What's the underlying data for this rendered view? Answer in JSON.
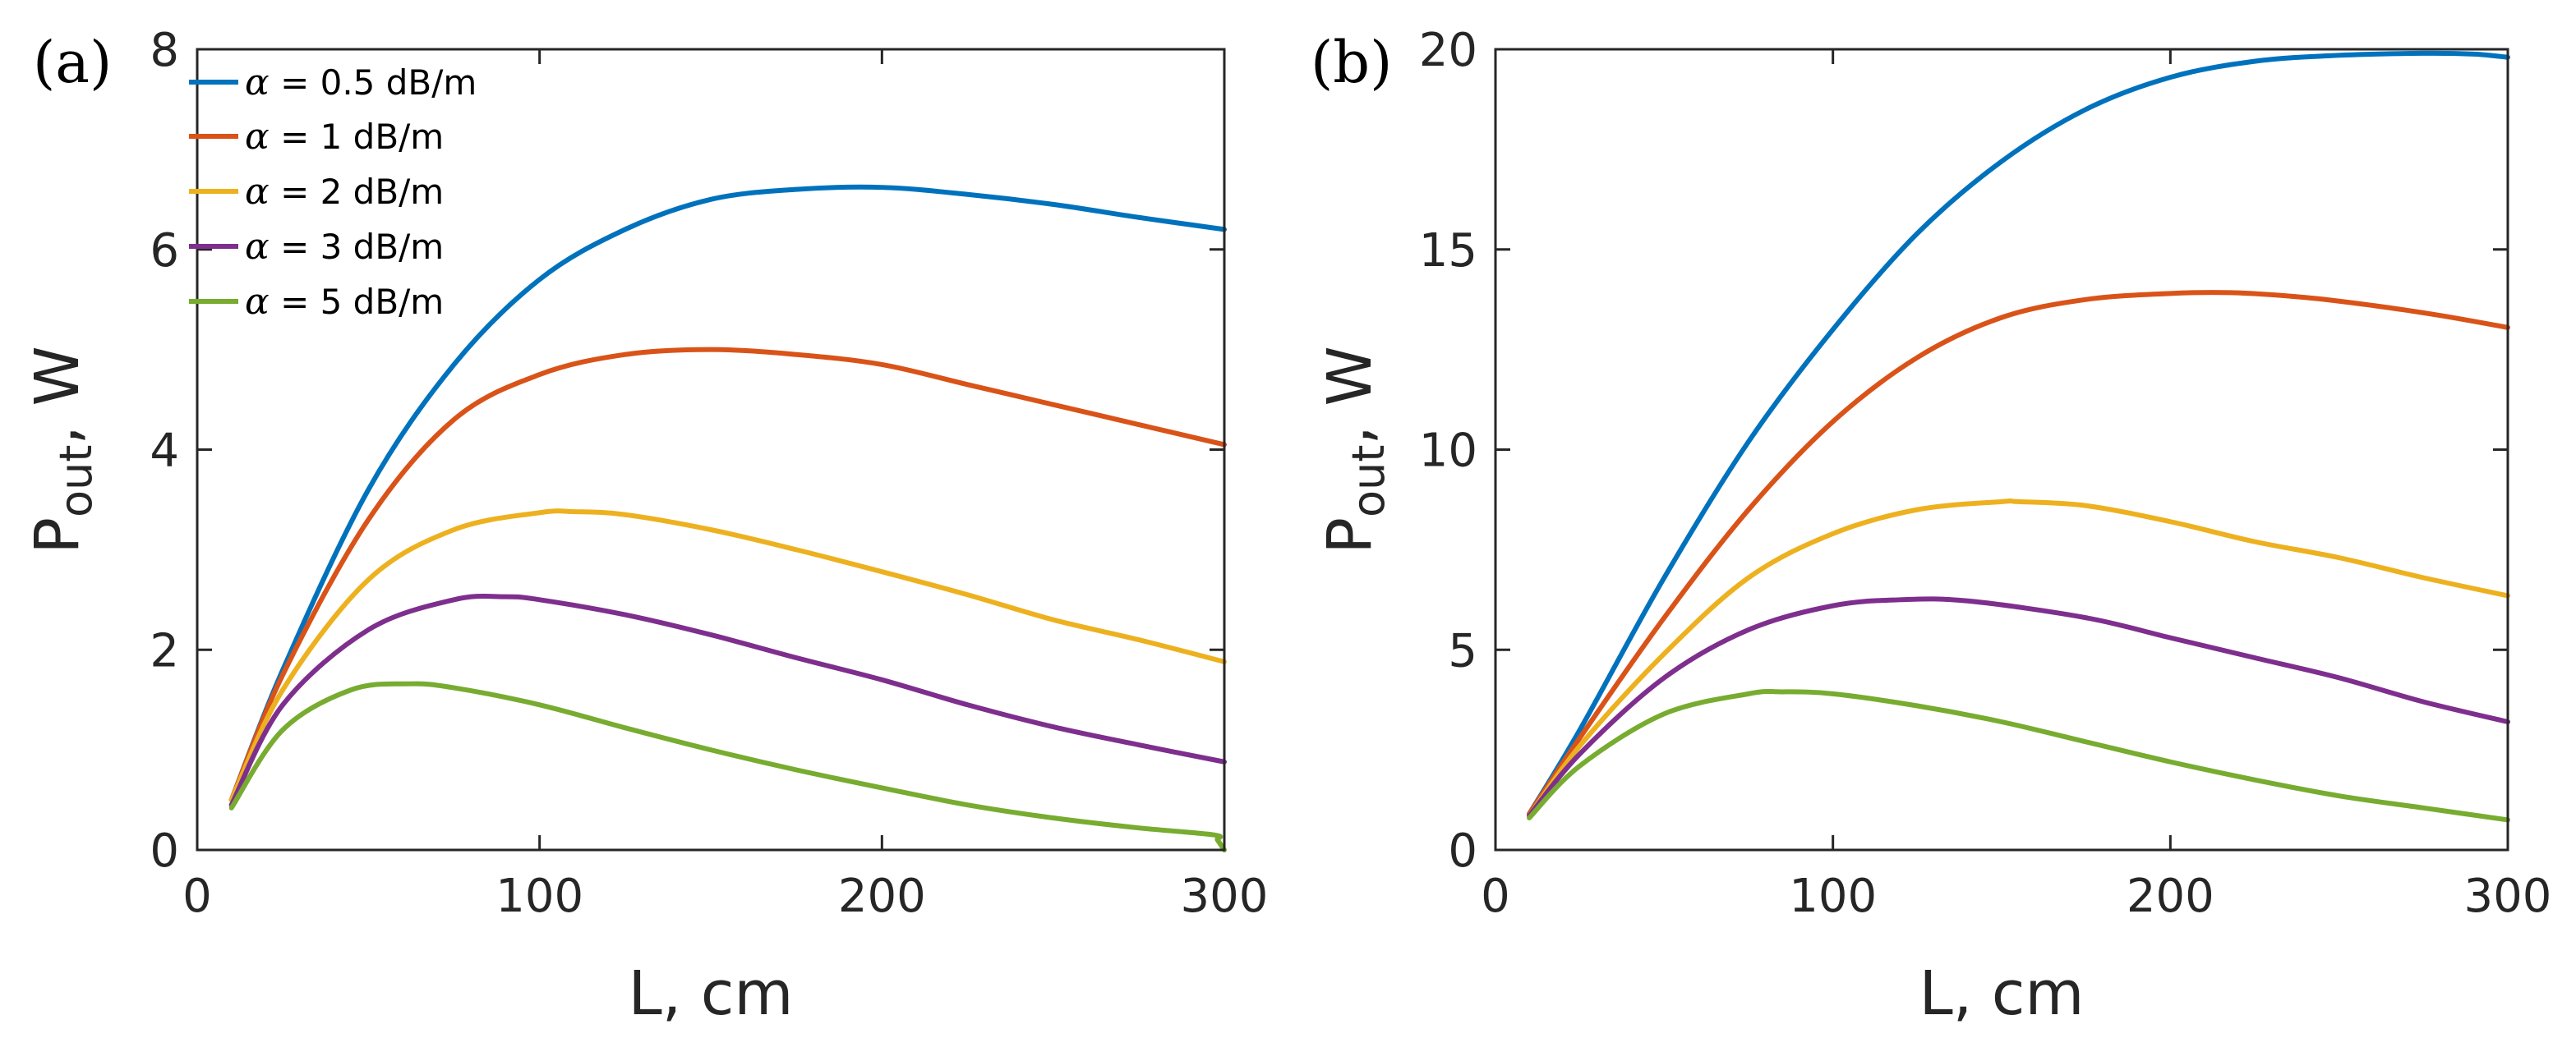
{
  "colors": {
    "blue": "#0072BD",
    "orange": "#D95319",
    "yellow": "#EDB120",
    "purple": "#7E2F8E",
    "green": "#77AC30"
  },
  "chart_data": [
    {
      "type": "line",
      "panel_label": "(a)",
      "xlabel": "L, cm",
      "ylabel_main": "P",
      "ylabel_sub": "out",
      "ylabel_tail": ", W",
      "xlim": [
        0,
        300
      ],
      "ylim": [
        0,
        8
      ],
      "xticks": [
        0,
        100,
        200,
        300
      ],
      "yticks": [
        0,
        2,
        4,
        6,
        8
      ],
      "legend": {
        "position": "top-left"
      },
      "series": [
        {
          "name": "α = 0.5 dB/m",
          "alpha_symbol": "α",
          "label_text": " = 0.5 dB/m",
          "color": "#0072BD",
          "x": [
            10,
            25,
            50,
            75,
            100,
            125,
            150,
            175,
            200,
            225,
            250,
            275,
            300
          ],
          "y": [
            0.5,
            1.8,
            3.6,
            4.85,
            5.7,
            6.2,
            6.5,
            6.6,
            6.62,
            6.55,
            6.45,
            6.32,
            6.2
          ]
        },
        {
          "name": "α = 1 dB/m",
          "alpha_symbol": "α",
          "label_text": " = 1 dB/m",
          "color": "#D95319",
          "x": [
            10,
            25,
            50,
            75,
            100,
            125,
            150,
            175,
            200,
            225,
            250,
            275,
            300
          ],
          "y": [
            0.5,
            1.75,
            3.3,
            4.3,
            4.75,
            4.95,
            5.0,
            4.95,
            4.85,
            4.65,
            4.45,
            4.25,
            4.05
          ]
        },
        {
          "name": "α = 2 dB/m",
          "alpha_symbol": "α",
          "label_text": " = 2 dB/m",
          "color": "#EDB120",
          "x": [
            10,
            25,
            50,
            75,
            100,
            110,
            125,
            150,
            175,
            200,
            225,
            250,
            275,
            300
          ],
          "y": [
            0.5,
            1.6,
            2.7,
            3.2,
            3.37,
            3.38,
            3.35,
            3.2,
            3.0,
            2.78,
            2.55,
            2.3,
            2.1,
            1.88
          ]
        },
        {
          "name": "α = 3 dB/m",
          "alpha_symbol": "α",
          "label_text": " = 3 dB/m",
          "color": "#7E2F8E",
          "x": [
            10,
            25,
            50,
            75,
            90,
            100,
            125,
            150,
            175,
            200,
            225,
            250,
            275,
            300
          ],
          "y": [
            0.45,
            1.45,
            2.2,
            2.5,
            2.53,
            2.5,
            2.35,
            2.15,
            1.92,
            1.7,
            1.45,
            1.23,
            1.05,
            0.88
          ]
        },
        {
          "name": "α = 5 dB/m",
          "alpha_symbol": "α",
          "label_text": " = 5 dB/m",
          "color": "#77AC30",
          "x": [
            10,
            25,
            45,
            62,
            75,
            100,
            125,
            150,
            175,
            200,
            225,
            250,
            275,
            297,
            298,
            300
          ],
          "y": [
            0.42,
            1.2,
            1.6,
            1.66,
            1.62,
            1.45,
            1.22,
            1.0,
            0.8,
            0.62,
            0.45,
            0.32,
            0.22,
            0.15,
            0.1,
            0.0
          ]
        }
      ]
    },
    {
      "type": "line",
      "panel_label": "(b)",
      "xlabel": "L, cm",
      "ylabel_main": "P",
      "ylabel_sub": "out",
      "ylabel_tail": ", W",
      "xlim": [
        0,
        300
      ],
      "ylim": [
        0,
        20
      ],
      "xticks": [
        0,
        100,
        200,
        300
      ],
      "yticks": [
        0,
        5,
        10,
        15,
        20
      ],
      "series": [
        {
          "name": "α = 0.5 dB/m",
          "color": "#0072BD",
          "x": [
            10,
            25,
            50,
            75,
            100,
            125,
            150,
            175,
            200,
            225,
            250,
            275,
            290,
            300
          ],
          "y": [
            0.9,
            3.0,
            6.8,
            10.2,
            13.0,
            15.4,
            17.2,
            18.5,
            19.3,
            19.7,
            19.85,
            19.9,
            19.88,
            19.8
          ]
        },
        {
          "name": "α = 1 dB/m",
          "color": "#D95319",
          "x": [
            10,
            25,
            50,
            75,
            100,
            125,
            150,
            175,
            200,
            218,
            240,
            260,
            280,
            300
          ],
          "y": [
            0.9,
            2.8,
            5.8,
            8.5,
            10.7,
            12.3,
            13.3,
            13.75,
            13.9,
            13.92,
            13.8,
            13.6,
            13.35,
            13.05
          ]
        },
        {
          "name": "α = 2 dB/m",
          "color": "#EDB120",
          "x": [
            10,
            25,
            50,
            75,
            100,
            125,
            150,
            155,
            175,
            200,
            225,
            250,
            275,
            300
          ],
          "y": [
            0.85,
            2.6,
            4.9,
            6.8,
            7.9,
            8.5,
            8.7,
            8.7,
            8.6,
            8.2,
            7.7,
            7.3,
            6.8,
            6.35
          ]
        },
        {
          "name": "α = 3 dB/m",
          "color": "#7E2F8E",
          "x": [
            10,
            25,
            50,
            75,
            100,
            120,
            140,
            175,
            200,
            225,
            250,
            275,
            300
          ],
          "y": [
            0.85,
            2.4,
            4.3,
            5.5,
            6.1,
            6.25,
            6.22,
            5.8,
            5.3,
            4.8,
            4.3,
            3.7,
            3.2
          ]
        },
        {
          "name": "α = 5 dB/m",
          "color": "#77AC30",
          "x": [
            10,
            25,
            50,
            75,
            85,
            100,
            125,
            150,
            175,
            200,
            225,
            250,
            275,
            300
          ],
          "y": [
            0.8,
            2.1,
            3.4,
            3.9,
            3.95,
            3.9,
            3.6,
            3.2,
            2.7,
            2.2,
            1.75,
            1.35,
            1.05,
            0.75
          ]
        }
      ]
    }
  ]
}
